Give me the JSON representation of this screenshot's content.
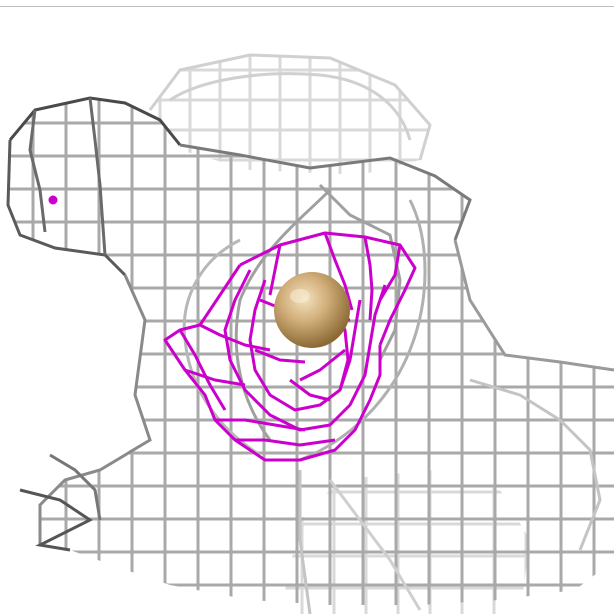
{
  "scene": {
    "mesh_color": "#a9a9a9",
    "mesh_dark_color": "#3c3c3c",
    "mesh_faint_color": "#d9d9d9",
    "contour_color": "#cc00cc",
    "atom_color": "#c8a46a",
    "atom_highlight_color": "#f3e2c0",
    "background_color": "#ffffff"
  }
}
